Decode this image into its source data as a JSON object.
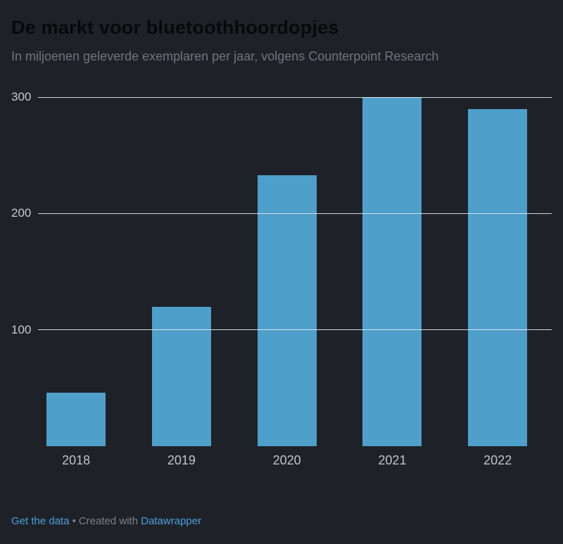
{
  "header": {
    "title": "De markt voor bluetoothhoordopjes",
    "subtitle": "In miljoenen geleverde exemplaren per jaar, volgens Counterpoint Research"
  },
  "chart_data": {
    "type": "bar",
    "categories": [
      "2018",
      "2019",
      "2020",
      "2021",
      "2022"
    ],
    "values": [
      46,
      120,
      233,
      300,
      290
    ],
    "title": "De markt voor bluetoothhoordopjes",
    "subtitle": "In miljoenen geleverde exemplaren per jaar, volgens Counterpoint Research",
    "xlabel": "",
    "ylabel": "",
    "ylim": [
      0,
      300
    ],
    "yticks": [
      100,
      200,
      300
    ],
    "grid": true,
    "legend": "none",
    "bar_color": "#4e9fca"
  },
  "footer": {
    "get_data_label": "Get the data",
    "separator": "•",
    "created_with": "Created with",
    "tool_link_label": "Datawrapper"
  },
  "colors": {
    "background": "#1e2228",
    "bar": "#4e9fca",
    "link": "#4a9fdd",
    "gridline": "#e3e6e9",
    "axis_text": "#c0c4c9",
    "subtitle_text": "#70757d"
  }
}
